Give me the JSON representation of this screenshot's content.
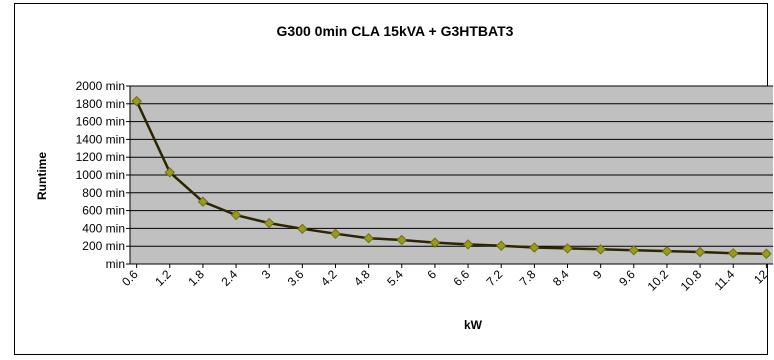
{
  "chart_data": {
    "type": "line",
    "title": "G300 0min CLA 15kVA + G3HTBAT3",
    "xlabel": "kW",
    "ylabel": "Runtime",
    "x": [
      "0.6",
      "1.2",
      "1.8",
      "2.4",
      "3",
      "3.6",
      "4.2",
      "4.8",
      "5.4",
      "6",
      "6.6",
      "7.2",
      "7.8",
      "8.4",
      "9",
      "9.6",
      "10.2",
      "10.8",
      "11.4",
      "12"
    ],
    "series": [
      {
        "values": [
          1830,
          1030,
          700,
          550,
          460,
          395,
          340,
          290,
          270,
          240,
          220,
          205,
          185,
          175,
          165,
          155,
          145,
          135,
          120,
          115
        ]
      }
    ],
    "y_ticks": [
      {
        "value": 0,
        "label": "min"
      },
      {
        "value": 200,
        "label": "200 min"
      },
      {
        "value": 400,
        "label": "400 min"
      },
      {
        "value": 600,
        "label": "600 min"
      },
      {
        "value": 800,
        "label": "800 min"
      },
      {
        "value": 1000,
        "label": "1000 min"
      },
      {
        "value": 1200,
        "label": "1200 min"
      },
      {
        "value": 1400,
        "label": "1400 min"
      },
      {
        "value": 1600,
        "label": "1600 min"
      },
      {
        "value": 1800,
        "label": "1800 min"
      },
      {
        "value": 2000,
        "label": "2000 min"
      }
    ],
    "ylim": [
      0,
      2000
    ],
    "grid": true,
    "legend": "none",
    "colors": {
      "plot_background": "#c0c0c0",
      "line": "#2b2500",
      "marker": "#9a9a1e",
      "marker_edge": "#6e6e10"
    }
  }
}
